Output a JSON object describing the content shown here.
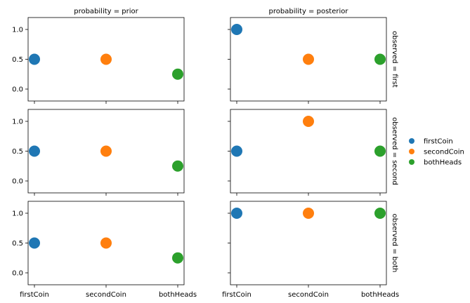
{
  "chart_data": {
    "type": "scatter",
    "categories": [
      "firstCoin",
      "secondCoin",
      "bothHeads"
    ],
    "colors": {
      "firstCoin": "#1f77b4",
      "secondCoin": "#ff7f0e",
      "bothHeads": "#2ca02c"
    },
    "col_titles": [
      "probability = prior",
      "probability = posterior"
    ],
    "row_titles": [
      "observed = first",
      "observed = second",
      "observed = both"
    ],
    "yticks": [
      0.0,
      0.5,
      1.0
    ],
    "ytick_labels": [
      "0.0",
      "0.5",
      "1.0"
    ],
    "ylim": [
      -0.2,
      1.2
    ],
    "panels": [
      [
        {
          "values": [
            0.5,
            0.5,
            0.25
          ]
        },
        {
          "values": [
            1.0,
            0.5,
            0.5
          ]
        }
      ],
      [
        {
          "values": [
            0.5,
            0.5,
            0.25
          ]
        },
        {
          "values": [
            0.5,
            1.0,
            0.5
          ]
        }
      ],
      [
        {
          "values": [
            0.5,
            0.5,
            0.25
          ]
        },
        {
          "values": [
            1.0,
            1.0,
            1.0
          ]
        }
      ]
    ],
    "legend": {
      "placement": "right",
      "entries": [
        "firstCoin",
        "secondCoin",
        "bothHeads"
      ]
    }
  }
}
